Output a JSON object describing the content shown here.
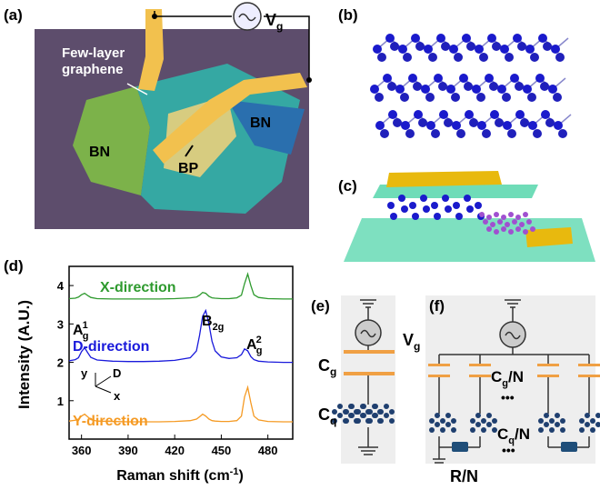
{
  "panels": {
    "a": {
      "label": "(a)",
      "graphene": [
        "Few-layer",
        "graphene"
      ],
      "bn_left": "BN",
      "bn_right": "BN",
      "bp": "BP",
      "source": {
        "main": "V",
        "sub": "g"
      }
    },
    "b": {
      "label": "(b)"
    },
    "c": {
      "label": "(c)"
    },
    "d": {
      "label": "(d)"
    },
    "e": {
      "label": "(e)",
      "source": {
        "main": "V",
        "sub": "g"
      },
      "cg": {
        "main": "C",
        "sub": "g"
      },
      "cq": {
        "main": "C",
        "sub": "q"
      }
    },
    "f": {
      "label": "(f)",
      "cg": {
        "main": "C",
        "sub": "g",
        "suffix": "/N"
      },
      "cq": {
        "main": "C",
        "sub": "q",
        "suffix": "/N"
      },
      "r": "R/N",
      "dots": [
        "•••",
        "•••"
      ]
    }
  },
  "chart_data": {
    "type": "line",
    "y_label": "Intensity (A.U.)",
    "x_label": {
      "main": "Raman shift (cm",
      "sup": "-1",
      "end": ")"
    },
    "x": [
      352,
      356,
      358,
      360,
      362,
      364,
      366,
      370,
      380,
      390,
      400,
      410,
      420,
      430,
      434,
      436,
      438,
      440,
      442,
      444,
      446,
      450,
      455,
      460,
      463,
      465,
      467,
      469,
      471,
      474,
      480,
      490,
      496
    ],
    "series": [
      {
        "name": "X-direction",
        "color": "#2e9a2e",
        "values": [
          3.66,
          3.67,
          3.7,
          3.76,
          3.8,
          3.74,
          3.69,
          3.66,
          3.65,
          3.65,
          3.65,
          3.65,
          3.66,
          3.68,
          3.7,
          3.75,
          3.82,
          3.8,
          3.72,
          3.68,
          3.67,
          3.66,
          3.66,
          3.68,
          3.75,
          4.05,
          4.3,
          4.0,
          3.76,
          3.69,
          3.66,
          3.65,
          3.65
        ]
      },
      {
        "name": "D-direction",
        "color": "#1a1adb",
        "values": [
          2.04,
          2.07,
          2.12,
          2.28,
          2.38,
          2.25,
          2.13,
          2.06,
          2.03,
          2.02,
          2.02,
          2.03,
          2.05,
          2.12,
          2.3,
          2.7,
          3.2,
          3.35,
          3.0,
          2.55,
          2.3,
          2.14,
          2.1,
          2.12,
          2.2,
          2.35,
          2.3,
          2.15,
          2.07,
          2.03,
          2.01,
          2.0,
          2.0
        ]
      },
      {
        "name": "Y-direction",
        "color": "#f59a23",
        "values": [
          0.47,
          0.49,
          0.52,
          0.6,
          0.65,
          0.58,
          0.51,
          0.47,
          0.46,
          0.45,
          0.45,
          0.45,
          0.46,
          0.48,
          0.52,
          0.58,
          0.65,
          0.6,
          0.52,
          0.48,
          0.47,
          0.46,
          0.46,
          0.48,
          0.6,
          1.1,
          1.35,
          0.95,
          0.6,
          0.5,
          0.46,
          0.45,
          0.45
        ]
      }
    ],
    "peaks": [
      {
        "main": "A",
        "sub": "g",
        "sup": "1"
      },
      {
        "main": "B",
        "sub": "2g"
      },
      {
        "main": "A",
        "sub": "g",
        "sup": "2"
      }
    ],
    "inset_axes": {
      "x": "x",
      "y": "y",
      "d": "D"
    },
    "xlim": [
      352,
      496
    ],
    "ylim": [
      0,
      4.5
    ],
    "xticks": [
      360,
      390,
      420,
      450,
      480
    ],
    "yticks": [
      1,
      2,
      3,
      4
    ]
  }
}
